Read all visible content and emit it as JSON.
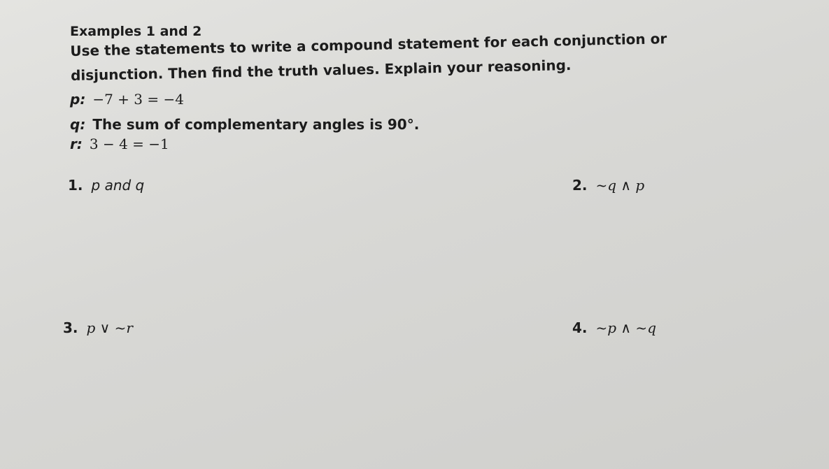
{
  "heading": "Examples 1 and 2",
  "instructions": "Use the statements to write a compound statement for each conjunction or disjunction. Then find the truth values. Explain your reasoning.",
  "statements": [
    {
      "label": "p:",
      "text": "−7 + 3 = −4"
    },
    {
      "label": "q:",
      "text": "The sum of complementary angles is 90°."
    },
    {
      "label": "r:",
      "text": "3 − 4 = −1"
    }
  ],
  "problems": [
    {
      "number": "1.",
      "text": "p and q"
    },
    {
      "number": "2.",
      "text": "~q ∧ p"
    },
    {
      "number": "3.",
      "text": "p ∨ ~r"
    },
    {
      "number": "4.",
      "text": "~p ∧ ~q"
    }
  ]
}
